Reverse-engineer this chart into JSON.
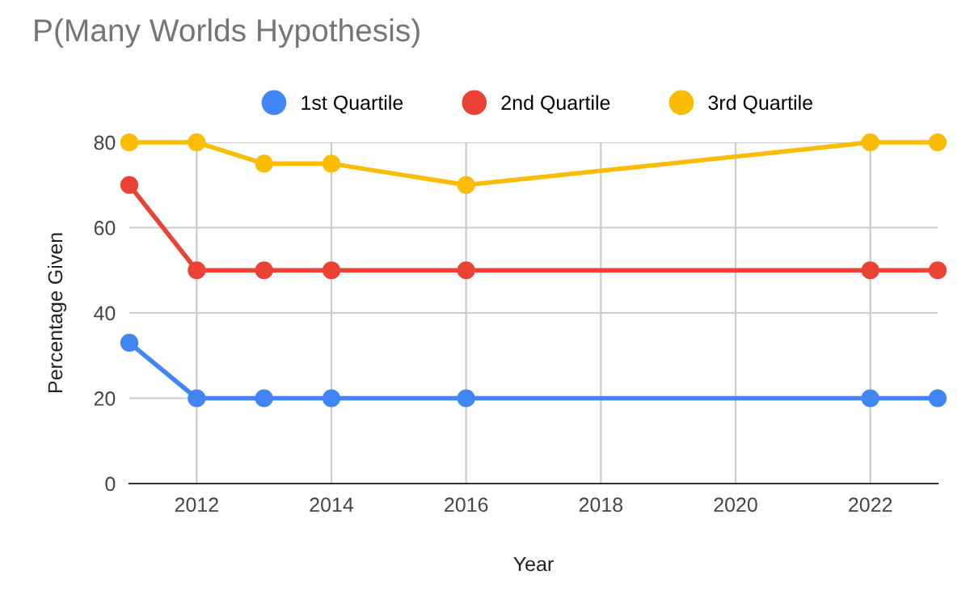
{
  "chart_data": {
    "type": "line",
    "title": "P(Many Worlds Hypothesis)",
    "xlabel": "Year",
    "ylabel": "Percentage Given",
    "x": [
      2011,
      2012,
      2013,
      2014,
      2016,
      2022,
      2023
    ],
    "series": [
      {
        "name": "1st Quartile",
        "color": "#4285f4",
        "values": [
          33,
          20,
          20,
          20,
          20,
          20,
          20
        ]
      },
      {
        "name": "2nd Quartile",
        "color": "#ea4335",
        "values": [
          70,
          50,
          50,
          50,
          50,
          50,
          50
        ]
      },
      {
        "name": "3rd Quartile",
        "color": "#fbbc04",
        "values": [
          80,
          80,
          75,
          75,
          70,
          80,
          80
        ]
      }
    ],
    "xlim": [
      2011,
      2023
    ],
    "xticks": [
      2012,
      2014,
      2016,
      2018,
      2020,
      2022
    ],
    "ylim": [
      0,
      80
    ],
    "yticks": [
      0,
      20,
      40,
      60,
      80
    ],
    "grid": true,
    "legend": "top",
    "marker": "circle",
    "line_style": "solid"
  }
}
